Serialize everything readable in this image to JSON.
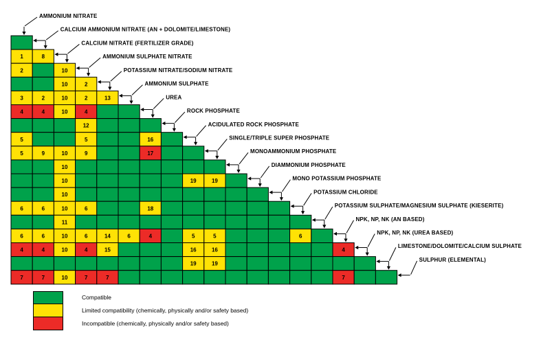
{
  "colors": {
    "compatible": "#00A24B",
    "limited": "#FFE205",
    "incompatible": "#EC2B27",
    "border": "#000000",
    "line": "#000000",
    "text": "#000000",
    "background": "#FFFFFF"
  },
  "chart_data": {
    "type": "heatmap",
    "shape": "lower-triangular-compatibility-matrix",
    "materials": [
      "AMMONIUM NITRATE",
      "CALCIUM AMMONIUM NITRATE (AN + DOLOMITE/LIMESTONE)",
      "CALCIUM NITRATE (FERTILIZER GRADE)",
      "AMMONIUM SULPHATE NITRATE",
      "POTASSIUM NITRATE/SODIUM NITRATE",
      "AMMONIUM SULPHATE",
      "UREA",
      "ROCK PHOSPHATE",
      "ACIDULATED ROCK PHOSPHATE",
      "SINGLE/TRIPLE SUPER PHOSPHATE",
      "MONOAMMONIUM PHOSPHATE",
      "DIAMMONIUM PHOSPHATE",
      "MONO POTASSIUM PHOSPHATE",
      "POTASSIUM CHLORIDE",
      "POTASSIUM SULPHATE/MAGNESIUM SULPHATE (KIESERITE)",
      "NPK, NP, NK (AN BASED)",
      "NPK, NP, NK (UREA BASED)",
      "LIMESTONE/DOLOMITE/CALCIUM SULPHATE",
      "SULPHUR (ELEMENTAL)"
    ],
    "cell_code_meaning": {
      "G": "Compatible",
      "Y": "Limited compatibility",
      "R": "Incompatible",
      "numbers": "footnote reference shown inside cell"
    },
    "rows": [
      [
        "G"
      ],
      [
        "Y1",
        "Y8"
      ],
      [
        "Y2",
        "G",
        "Y10"
      ],
      [
        "G",
        "G",
        "Y10",
        "Y2"
      ],
      [
        "Y3",
        "Y2",
        "Y10",
        "Y2",
        "Y13"
      ],
      [
        "R4",
        "R4",
        "Y10",
        "R4",
        "G",
        "G"
      ],
      [
        "G",
        "G",
        "G",
        "Y12",
        "G",
        "G",
        "G"
      ],
      [
        "Y5",
        "G",
        "G",
        "Y5",
        "G",
        "G",
        "Y16",
        "G"
      ],
      [
        "Y5",
        "Y9",
        "Y10",
        "Y9",
        "G",
        "G",
        "R17",
        "G",
        "G"
      ],
      [
        "G",
        "G",
        "Y10",
        "G",
        "G",
        "G",
        "G",
        "G",
        "G",
        "G"
      ],
      [
        "G",
        "G",
        "Y10",
        "G",
        "G",
        "G",
        "G",
        "G",
        "Y19",
        "Y19",
        "G"
      ],
      [
        "G",
        "G",
        "Y10",
        "G",
        "G",
        "G",
        "G",
        "G",
        "G",
        "G",
        "G",
        "G"
      ],
      [
        "Y6",
        "Y6",
        "Y10",
        "Y6",
        "G",
        "G",
        "Y18",
        "G",
        "G",
        "G",
        "G",
        "G",
        "G"
      ],
      [
        "G",
        "G",
        "Y11",
        "G",
        "G",
        "G",
        "G",
        "G",
        "G",
        "G",
        "G",
        "G",
        "G",
        "G"
      ],
      [
        "Y6",
        "Y6",
        "Y10",
        "Y6",
        "Y14",
        "Y6",
        "R4",
        "G",
        "Y5",
        "Y5",
        "G",
        "G",
        "G",
        "Y6",
        "G"
      ],
      [
        "R4",
        "R4",
        "Y10",
        "R4",
        "Y15",
        "G",
        "G",
        "G",
        "Y16",
        "Y16",
        "G",
        "G",
        "G",
        "G",
        "G",
        "R4"
      ],
      [
        "G",
        "G",
        "G",
        "G",
        "G",
        "G",
        "G",
        "G",
        "Y19",
        "Y19",
        "G",
        "G",
        "G",
        "G",
        "G",
        "G",
        "G"
      ],
      [
        "R7",
        "R7",
        "Y10",
        "R7",
        "R7",
        "G",
        "G",
        "G",
        "G",
        "G",
        "G",
        "G",
        "G",
        "G",
        "G",
        "R7",
        "G",
        "G"
      ]
    ]
  },
  "legend": {
    "items": [
      {
        "key": "compatible",
        "label": "Compatible"
      },
      {
        "key": "limited",
        "label": "Limited compatibility (chemically, physically and/or safety based)"
      },
      {
        "key": "incompatible",
        "label": "Incompatible (chemically, physically and/or safety based)"
      }
    ]
  }
}
